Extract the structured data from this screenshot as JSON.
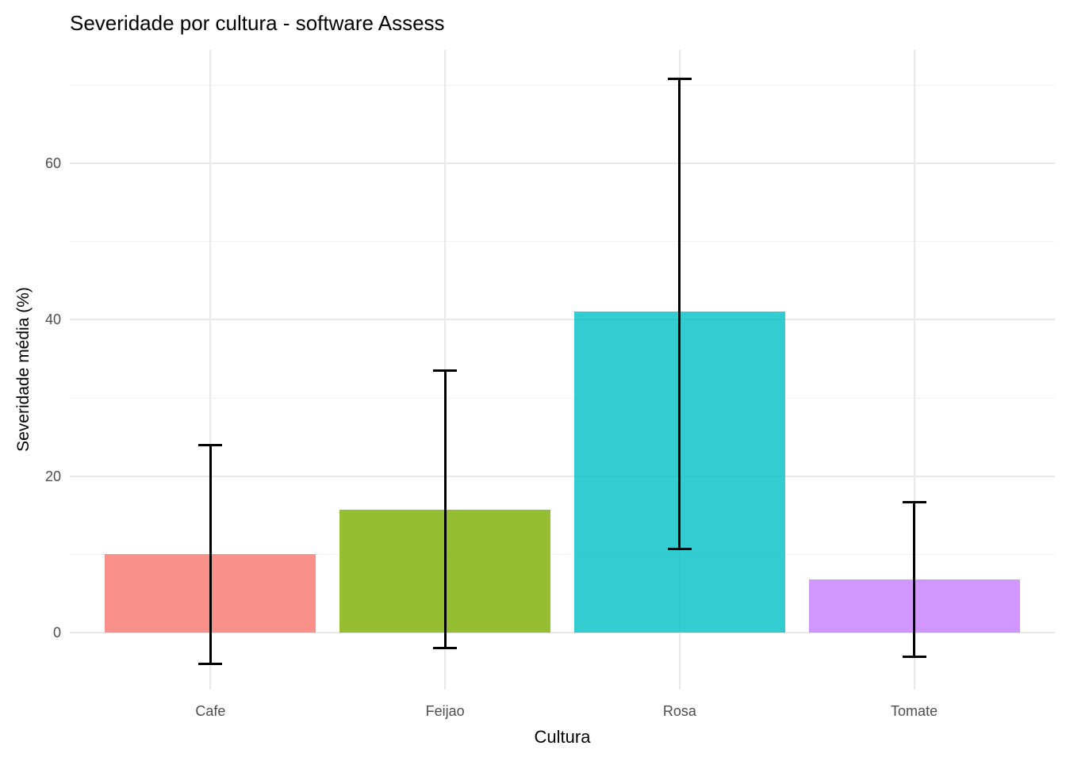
{
  "chart_data": {
    "type": "bar",
    "title": "Severidade por cultura - software Assess",
    "xlabel": "Cultura",
    "ylabel": "Severidade média (%)",
    "categories": [
      "Cafe",
      "Feijao",
      "Rosa",
      "Tomate"
    ],
    "values": [
      10,
      15.7,
      41,
      6.8
    ],
    "error_bars": {
      "lower": [
        -4,
        -2,
        10.7,
        -3.1
      ],
      "upper": [
        24,
        33.5,
        70.8,
        16.7
      ]
    },
    "y_ticks": [
      0,
      20,
      40,
      60
    ],
    "y_minor_ticks": [
      10,
      30,
      50,
      70
    ],
    "ylim": [
      -7.3,
      74.5
    ],
    "grid": true,
    "legend": false,
    "bar_colors": [
      "#F8766D",
      "#7CAE00",
      "#00BFC4",
      "#C77CFF"
    ],
    "bar_opacity": 0.8,
    "error_bar_color": "#000000",
    "grid_major_color": "#E8E8E8",
    "grid_minor_color": "#F2F2F2",
    "axis_text_color": "#4D4D4D"
  }
}
